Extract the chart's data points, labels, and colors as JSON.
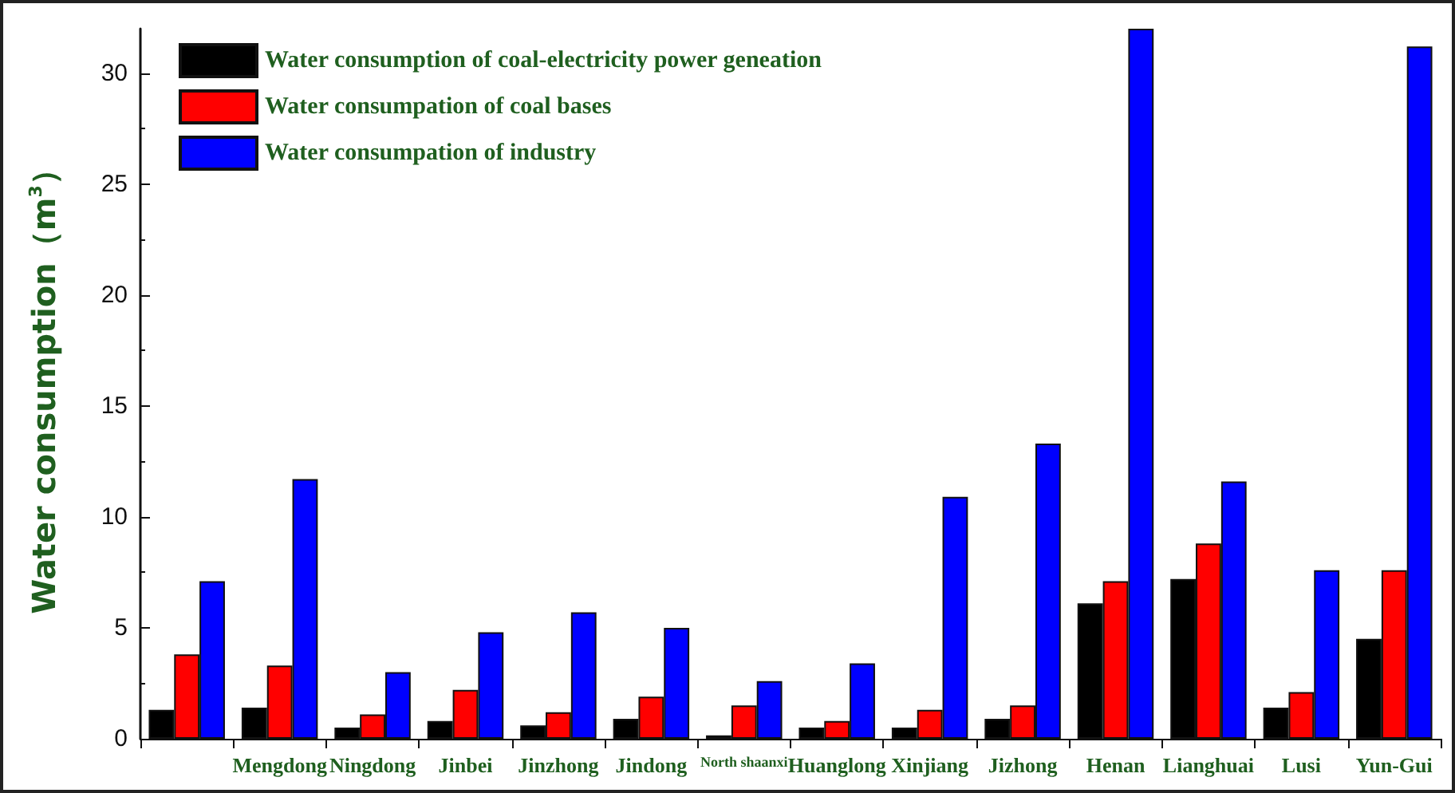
{
  "chart_data": {
    "type": "bar",
    "ylabel": "Water consumption（m$^{3}$）",
    "categories": [
      null,
      "Mengdong",
      "Ningdong",
      "Jinbei",
      "Jinzhong",
      "Jindong",
      "North shaanxi",
      "Huanglong",
      "Xinjiang",
      "Jizhong",
      "Henan",
      "Lianghuai",
      "Lusi",
      "Yun-Gui"
    ],
    "series": [
      {
        "name": "Water consumption of coal-electricity power geneation",
        "color": "#000000",
        "values": [
          1.3,
          1.4,
          0.5,
          0.8,
          0.6,
          0.9,
          0.15,
          0.5,
          0.5,
          0.9,
          6.1,
          7.2,
          1.4,
          4.5
        ]
      },
      {
        "name": "Water consumpation of coal bases",
        "color": "#ff0000",
        "values": [
          3.8,
          3.3,
          1.1,
          2.2,
          1.2,
          1.9,
          1.5,
          0.8,
          1.3,
          1.5,
          7.1,
          8.8,
          2.1,
          7.6
        ]
      },
      {
        "name": "Water consumpation of industry",
        "color": "#0000ff",
        "values": [
          7.1,
          11.7,
          3.0,
          4.8,
          5.7,
          5.0,
          2.6,
          3.4,
          10.9,
          13.3,
          32.0,
          11.6,
          7.6,
          31.2
        ]
      }
    ],
    "ylim": [
      0,
      32
    ],
    "yticks": [
      0,
      5,
      10,
      15,
      20,
      25,
      30
    ],
    "grid": false,
    "legend": "top left"
  }
}
